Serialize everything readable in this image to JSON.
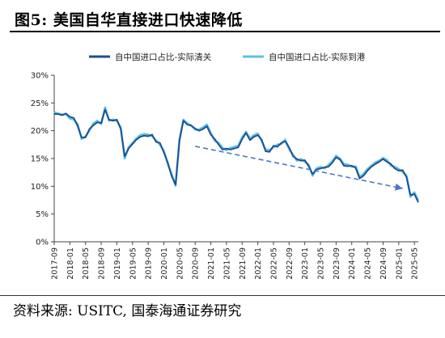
{
  "title": "图5: 美国自华直接进口快速降低",
  "source": "资料来源: USITC, 国泰海通证券研究",
  "chart_data": {
    "type": "line",
    "title": "",
    "xlabel": "",
    "ylabel": "",
    "ylim": [
      0,
      30
    ],
    "yticks": [
      "0%",
      "5%",
      "10%",
      "15%",
      "20%",
      "25%",
      "30%"
    ],
    "xticks": [
      "2017-09",
      "2018-01",
      "2018-05",
      "2018-09",
      "2019-01",
      "2019-05",
      "2019-09",
      "2020-01",
      "2020-05",
      "2020-09",
      "2021-01",
      "2021-05",
      "2021-09",
      "2022-01",
      "2022-05",
      "2022-09",
      "2023-01",
      "2023-05",
      "2023-09",
      "2024-01",
      "2024-05",
      "2024-09",
      "2025-01",
      "2025-05"
    ],
    "legend_position": "top",
    "grid": false,
    "start_month": "2017-09",
    "series": [
      {
        "name": "自中国进口占比-实际清关",
        "color": "#1f4e8c",
        "values": [
          23.0,
          23.0,
          22.8,
          23.1,
          22.5,
          22.3,
          20.8,
          18.8,
          18.8,
          20.3,
          21.0,
          21.5,
          21.4,
          23.8,
          22.0,
          21.8,
          22.0,
          20.3,
          15.4,
          16.8,
          17.6,
          18.4,
          18.9,
          19.1,
          19.0,
          19.3,
          18.0,
          17.8,
          16.1,
          14.3,
          11.8,
          10.3,
          18.2,
          21.8,
          21.1,
          20.9,
          20.4,
          20.0,
          20.3,
          20.8,
          19.3,
          18.5,
          17.5,
          16.6,
          16.8,
          16.6,
          16.8,
          17.0,
          18.5,
          19.6,
          18.3,
          18.9,
          19.2,
          18.4,
          16.3,
          16.2,
          17.3,
          17.1,
          17.8,
          18.1,
          17.0,
          15.4,
          14.9,
          14.6,
          14.7,
          13.6,
          12.2,
          13.0,
          13.2,
          13.4,
          13.5,
          14.2,
          15.2,
          14.8,
          13.7,
          13.6,
          13.7,
          13.3,
          11.4,
          11.9,
          12.8,
          13.5,
          14.0,
          14.4,
          14.9,
          14.4,
          14.0,
          13.2,
          12.8,
          12.9,
          11.6,
          8.4,
          8.6,
          7.1
        ]
      },
      {
        "name": "自中国进口占比-实际到港",
        "color": "#5bc0eb",
        "values": [
          23.3,
          23.1,
          22.9,
          23.0,
          22.2,
          22.0,
          21.2,
          18.5,
          19.0,
          20.0,
          21.3,
          21.8,
          21.2,
          24.2,
          21.8,
          22.0,
          21.8,
          20.6,
          15.0,
          17.0,
          17.8,
          18.6,
          19.2,
          19.4,
          19.3,
          19.0,
          18.3,
          17.5,
          16.4,
          14.0,
          12.2,
          10.1,
          18.5,
          22.0,
          21.3,
          21.0,
          20.2,
          20.2,
          20.6,
          21.1,
          19.6,
          18.2,
          17.8,
          16.9,
          16.5,
          16.9,
          17.1,
          17.3,
          18.8,
          19.8,
          18.6,
          19.2,
          19.5,
          18.1,
          16.6,
          16.5,
          17.0,
          17.5,
          17.6,
          18.4,
          16.7,
          15.7,
          14.6,
          14.9,
          14.4,
          13.9,
          11.9,
          13.2,
          13.5,
          13.2,
          13.8,
          14.5,
          15.5,
          15.0,
          14.0,
          13.9,
          13.5,
          13.6,
          11.7,
          12.2,
          13.1,
          13.7,
          14.3,
          14.6,
          15.1,
          14.7,
          13.7,
          13.5,
          13.1,
          12.6,
          11.9,
          8.1,
          8.9,
          7.4
        ]
      }
    ],
    "trend_arrow": {
      "from": [
        "2020-09",
        17.2
      ],
      "to": [
        "2025-02",
        9.6
      ],
      "color": "#4a78c2",
      "style": "dashed"
    }
  }
}
